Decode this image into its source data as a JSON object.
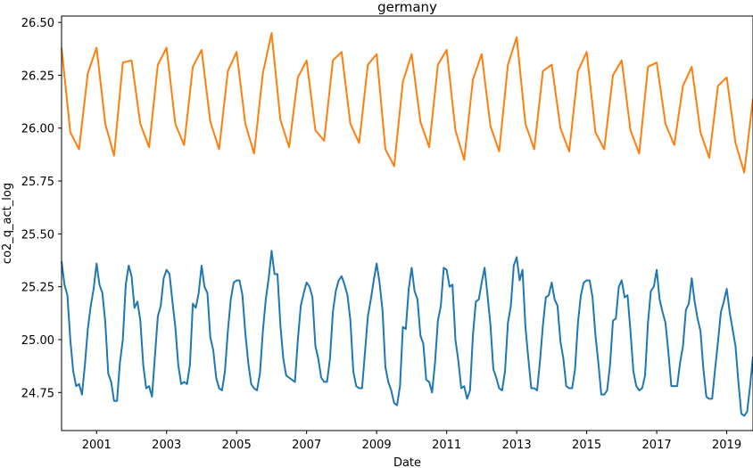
{
  "chart_data": {
    "type": "line",
    "title": "germany",
    "xlabel": "Date",
    "ylabel": "co2_q_act_log",
    "x_start": "2000-01",
    "x_end": "2019-10",
    "x_tick_labels": [
      "2001",
      "2003",
      "2005",
      "2007",
      "2009",
      "2011",
      "2013",
      "2015",
      "2017",
      "2019"
    ],
    "y_tick_labels": [
      "24.75",
      "25.00",
      "25.25",
      "25.50",
      "25.75",
      "26.00",
      "26.25",
      "26.50"
    ],
    "ylim": [
      24.57,
      26.53
    ],
    "grid": false,
    "colors": {
      "quarterly": "#ff7f0e",
      "monthly": "#1f77b4"
    },
    "series": [
      {
        "frequency": "quarterly",
        "x": [
          "2000-01",
          "2000-04",
          "2000-07",
          "2000-10",
          "2001-01",
          "2001-04",
          "2001-07",
          "2001-10",
          "2002-01",
          "2002-04",
          "2002-07",
          "2002-10",
          "2003-01",
          "2003-04",
          "2003-07",
          "2003-10",
          "2004-01",
          "2004-04",
          "2004-07",
          "2004-10",
          "2005-01",
          "2005-04",
          "2005-07",
          "2005-10",
          "2006-01",
          "2006-04",
          "2006-07",
          "2006-10",
          "2007-01",
          "2007-04",
          "2007-07",
          "2007-10",
          "2008-01",
          "2008-04",
          "2008-07",
          "2008-10",
          "2009-01",
          "2009-04",
          "2009-07",
          "2009-10",
          "2010-01",
          "2010-04",
          "2010-07",
          "2010-10",
          "2011-01",
          "2011-04",
          "2011-07",
          "2011-10",
          "2012-01",
          "2012-04",
          "2012-07",
          "2012-10",
          "2013-01",
          "2013-04",
          "2013-07",
          "2013-10",
          "2014-01",
          "2014-04",
          "2014-07",
          "2014-10",
          "2015-01",
          "2015-04",
          "2015-07",
          "2015-10",
          "2016-01",
          "2016-04",
          "2016-07",
          "2016-10",
          "2017-01",
          "2017-04",
          "2017-07",
          "2017-10",
          "2018-01",
          "2018-04",
          "2018-07",
          "2018-10",
          "2019-01",
          "2019-04",
          "2019-07",
          "2019-10"
        ],
        "values": [
          26.38,
          25.98,
          25.9,
          26.26,
          26.38,
          26.02,
          25.87,
          26.31,
          26.32,
          26.02,
          25.91,
          26.3,
          26.38,
          26.02,
          25.92,
          26.29,
          26.37,
          26.03,
          25.9,
          26.27,
          26.36,
          26.02,
          25.88,
          26.26,
          26.45,
          26.04,
          25.91,
          26.24,
          26.32,
          25.99,
          25.94,
          26.32,
          26.36,
          26.02,
          25.93,
          26.3,
          26.35,
          25.9,
          25.82,
          26.22,
          26.35,
          26.03,
          25.91,
          26.3,
          26.37,
          25.99,
          25.85,
          26.23,
          26.35,
          26.01,
          25.89,
          26.3,
          26.43,
          26.02,
          25.9,
          26.27,
          26.3,
          26.0,
          25.89,
          26.27,
          26.36,
          25.98,
          25.9,
          26.25,
          26.32,
          25.99,
          25.88,
          26.29,
          26.31,
          26.02,
          25.92,
          26.2,
          26.29,
          25.98,
          25.86,
          26.2,
          26.24,
          25.93,
          25.79,
          26.14
        ]
      },
      {
        "frequency": "monthly",
        "x_start": "2000-01",
        "values": [
          25.37,
          25.26,
          25.21,
          25.0,
          24.85,
          24.78,
          24.79,
          24.74,
          24.88,
          25.05,
          25.16,
          25.24,
          25.36,
          25.26,
          25.22,
          25.08,
          24.84,
          24.8,
          24.71,
          24.71,
          24.89,
          25.0,
          25.26,
          25.35,
          25.3,
          25.15,
          25.18,
          25.09,
          24.88,
          24.77,
          24.78,
          24.73,
          24.92,
          25.11,
          25.16,
          25.29,
          25.33,
          25.31,
          25.18,
          25.06,
          24.88,
          24.79,
          24.8,
          24.79,
          24.88,
          25.17,
          25.15,
          25.22,
          25.35,
          25.25,
          25.22,
          25.01,
          24.95,
          24.82,
          24.77,
          24.76,
          24.85,
          25.04,
          25.19,
          25.27,
          25.28,
          25.28,
          25.21,
          25.03,
          24.89,
          24.79,
          24.77,
          24.76,
          24.84,
          25.04,
          25.19,
          25.29,
          25.42,
          25.31,
          25.31,
          25.07,
          24.91,
          24.83,
          24.82,
          24.81,
          24.8,
          25.0,
          25.16,
          25.22,
          25.27,
          25.25,
          25.2,
          24.97,
          24.91,
          24.82,
          24.8,
          24.8,
          24.91,
          25.13,
          25.23,
          25.28,
          25.3,
          25.26,
          25.21,
          25.09,
          24.85,
          24.78,
          24.77,
          24.77,
          24.94,
          25.11,
          25.19,
          25.28,
          25.36,
          25.27,
          25.14,
          24.87,
          24.8,
          24.76,
          24.7,
          24.69,
          24.78,
          25.06,
          25.05,
          25.24,
          25.34,
          25.23,
          25.19,
          25.02,
          24.98,
          24.81,
          24.8,
          24.75,
          24.89,
          25.09,
          25.16,
          25.34,
          25.33,
          25.25,
          25.26,
          25.0,
          24.9,
          24.77,
          24.78,
          24.72,
          24.76,
          25.02,
          25.18,
          25.19,
          25.27,
          25.34,
          25.21,
          25.07,
          24.86,
          24.82,
          24.77,
          24.76,
          24.85,
          25.08,
          25.16,
          25.35,
          25.39,
          25.28,
          25.33,
          25.06,
          24.91,
          24.77,
          24.77,
          24.76,
          24.9,
          25.07,
          25.2,
          25.21,
          25.27,
          25.19,
          25.16,
          24.99,
          24.91,
          24.78,
          24.77,
          24.77,
          24.86,
          25.08,
          25.21,
          25.27,
          25.28,
          25.28,
          25.2,
          25.02,
          24.89,
          24.74,
          24.74,
          24.76,
          24.88,
          25.09,
          25.1,
          25.25,
          25.28,
          25.2,
          25.21,
          25.04,
          24.85,
          24.78,
          24.76,
          24.77,
          24.83,
          25.08,
          25.23,
          25.25,
          25.33,
          25.19,
          25.13,
          25.08,
          24.94,
          24.78,
          24.78,
          24.78,
          24.89,
          24.97,
          25.14,
          25.17,
          25.29,
          25.18,
          25.1,
          25.04,
          24.86,
          24.73,
          24.72,
          24.72,
          24.86,
          24.99,
          25.13,
          25.18,
          25.24,
          25.13,
          25.05,
          24.97,
          24.8,
          24.65,
          24.64,
          24.66,
          24.78,
          24.92
        ]
      }
    ]
  }
}
